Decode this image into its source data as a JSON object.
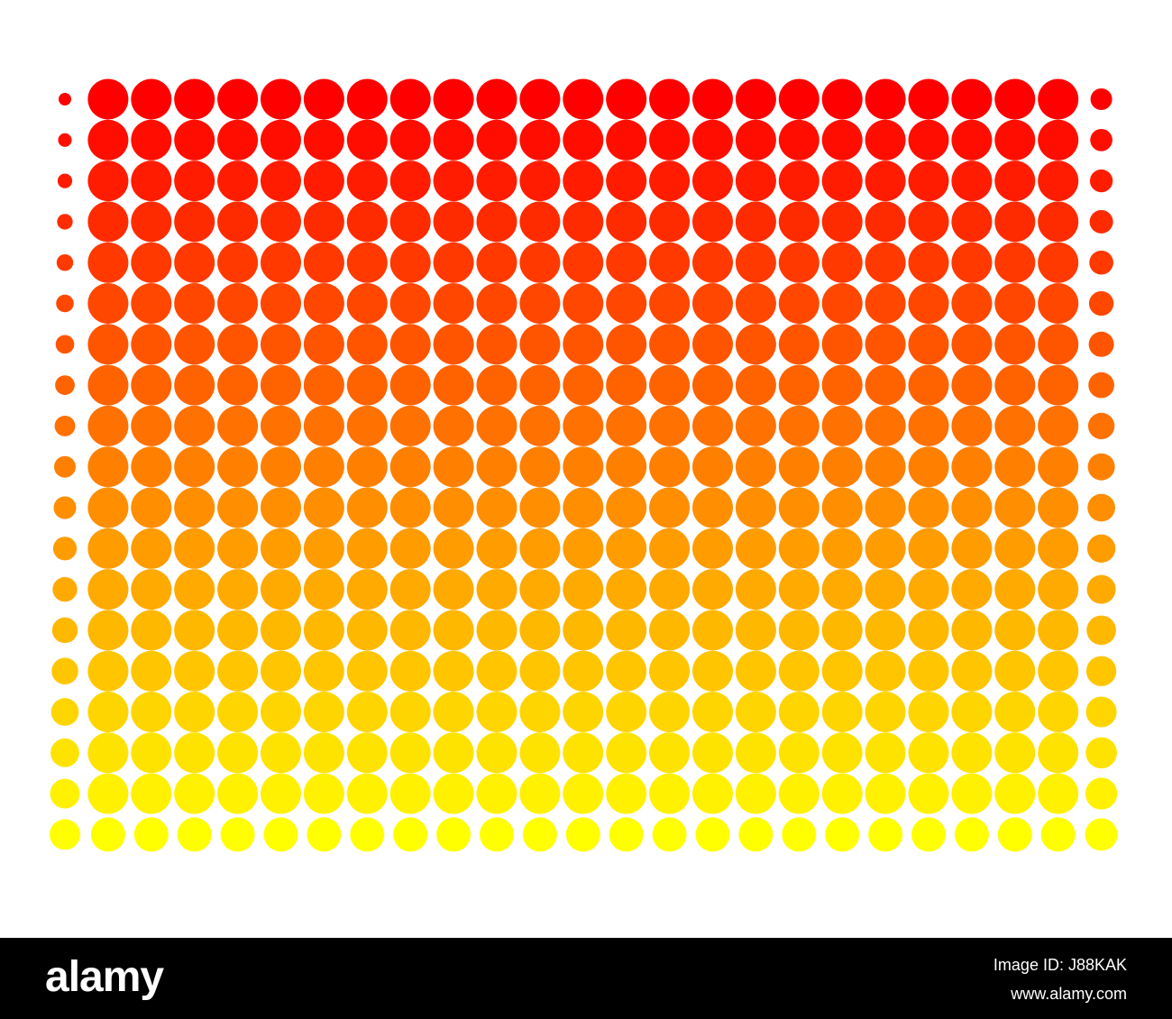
{
  "footer": {
    "logo": "alamy",
    "image_id": "Image ID: J88KAK",
    "site": "www.alamy.com"
  }
}
